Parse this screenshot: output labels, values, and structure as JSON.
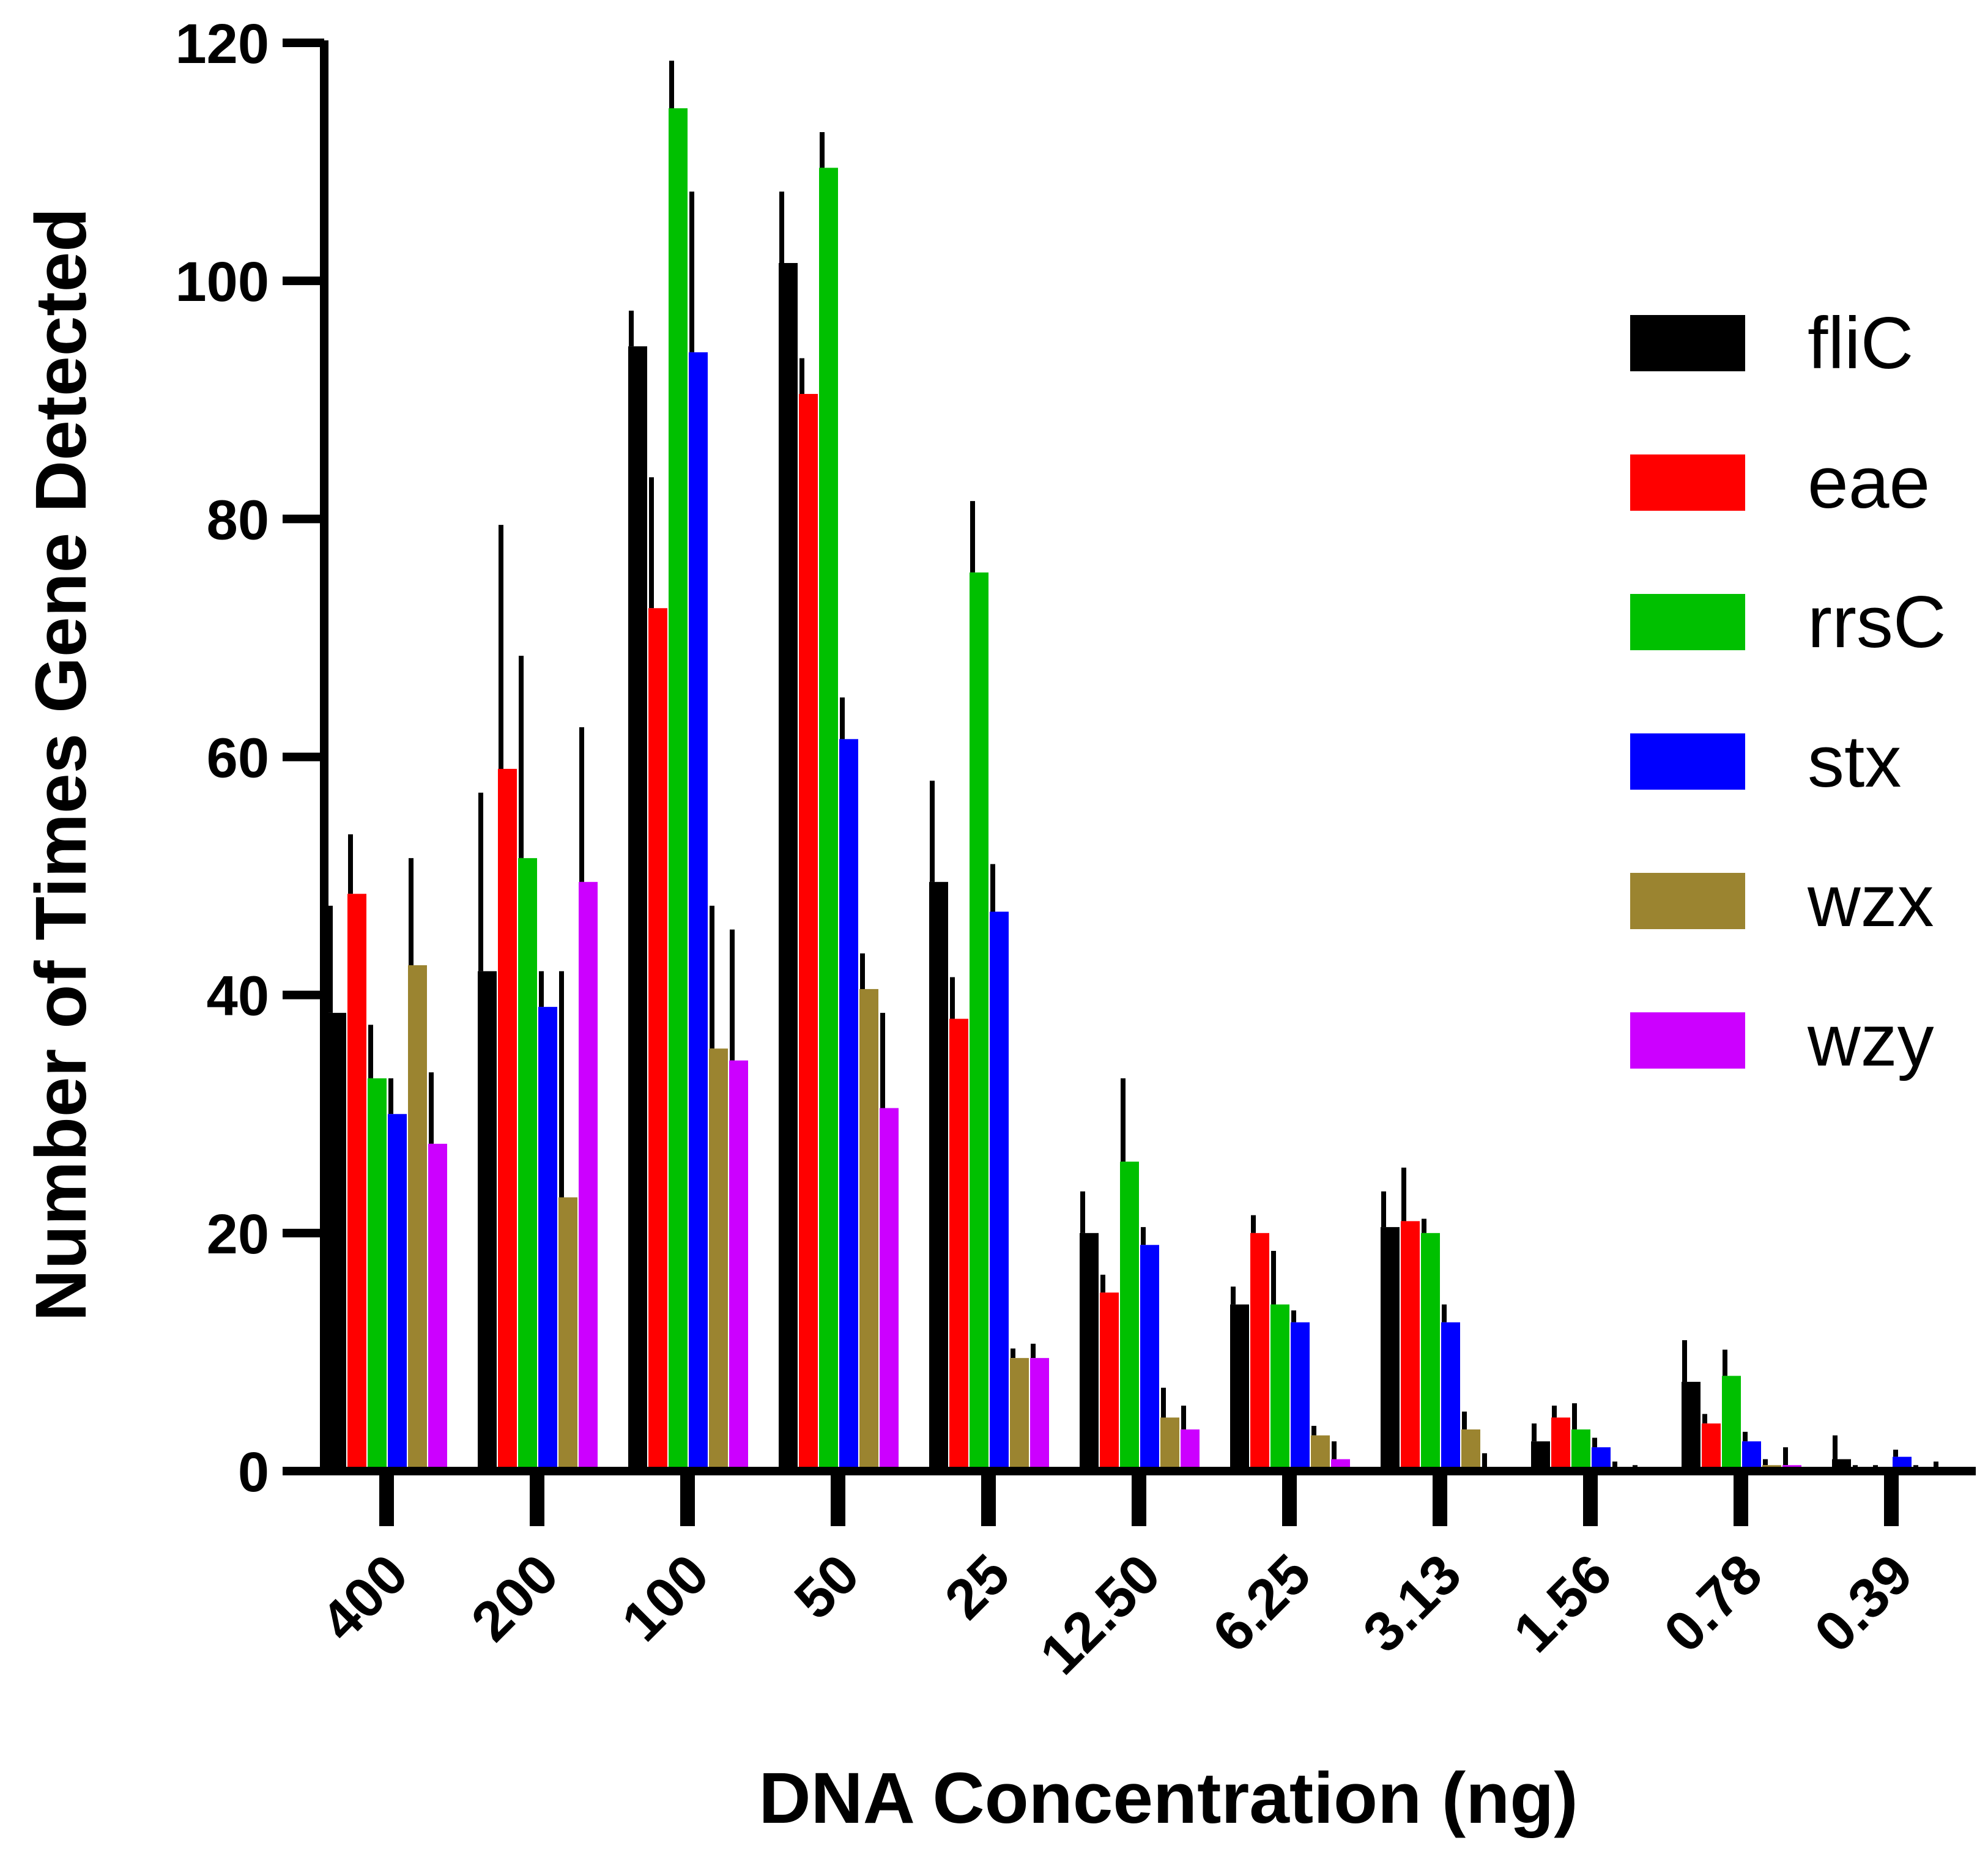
{
  "chart_data": {
    "type": "bar",
    "title": "",
    "xlabel": "DNA Concentration (ng)",
    "ylabel": "Number of Times Gene Detected",
    "ylim": [
      0,
      120
    ],
    "yticks": [
      "0",
      "20",
      "40",
      "60",
      "80",
      "100",
      "120"
    ],
    "categories": [
      "400",
      "200",
      "100",
      "50",
      "25",
      "12.50",
      "6.25",
      "3.13",
      "1.56",
      "0.78",
      "0.39"
    ],
    "legend_position": "right",
    "series": [
      {
        "name": "fliC",
        "color": "#000000",
        "values": [
          38.5,
          42,
          94.5,
          101.5,
          49.5,
          20,
          14,
          20.5,
          2.5,
          7.5,
          1
        ],
        "errors": [
          9,
          15,
          3,
          6,
          8.5,
          3.5,
          1.5,
          3,
          1.5,
          3.5,
          2
        ]
      },
      {
        "name": "eae",
        "color": "#ff0000",
        "values": [
          48.5,
          59,
          72.5,
          90.5,
          38,
          15,
          20,
          21,
          4.5,
          4,
          0
        ],
        "errors": [
          5,
          20.5,
          11,
          3,
          3.5,
          1.5,
          1.5,
          4.5,
          1,
          0.8,
          0.5
        ]
      },
      {
        "name": "rrsC",
        "color": "#00c000",
        "values": [
          33,
          51.5,
          114.5,
          109.5,
          75.5,
          26,
          14,
          20,
          3.5,
          8,
          0
        ],
        "errors": [
          4.5,
          17,
          4,
          3,
          6,
          7,
          4.5,
          1.2,
          2.2,
          2.2,
          0.5
        ]
      },
      {
        "name": "stx",
        "color": "#0000ff",
        "values": [
          30,
          39,
          94,
          61.5,
          47,
          19,
          12.5,
          12.5,
          2,
          2.5,
          1.2
        ],
        "errors": [
          3,
          3,
          13.5,
          3.5,
          4,
          1.5,
          1,
          1.5,
          0.8,
          0.8,
          0.6
        ]
      },
      {
        "name": "wzx",
        "color": "#9b8430",
        "values": [
          42.5,
          23,
          35.5,
          40.5,
          9.5,
          4.5,
          3,
          3.5,
          0.3,
          0.5,
          0
        ],
        "errors": [
          9,
          19,
          12,
          3,
          0.8,
          2.5,
          0.8,
          1.5,
          0.5,
          0.5,
          0.5
        ]
      },
      {
        "name": "wzy",
        "color": "#cc00ff",
        "values": [
          27.5,
          49.5,
          34.5,
          30.5,
          9.5,
          3.5,
          1,
          0,
          0,
          0.5,
          0.3
        ],
        "errors": [
          6,
          13,
          11,
          8,
          1.2,
          2,
          1.5,
          1.5,
          0.5,
          1.5,
          0.5
        ]
      }
    ]
  }
}
